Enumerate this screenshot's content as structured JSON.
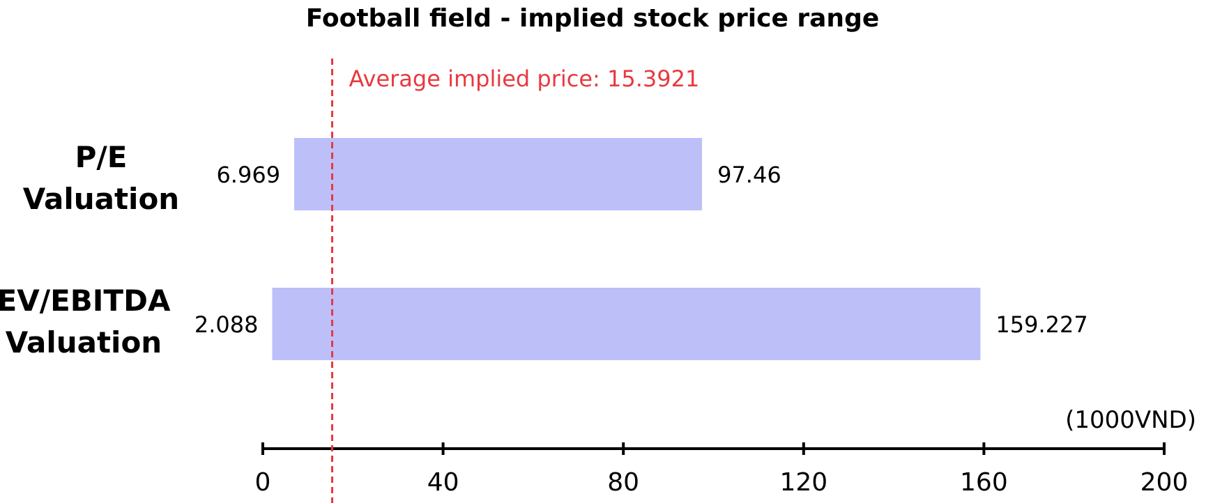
{
  "chart_data": {
    "type": "bar",
    "subtype": "floating-range",
    "title": "Football field - implied stock price range",
    "unit_label": "(1000VND)",
    "categories": [
      "P/E Valuation",
      "EV/EBITDA Valuation"
    ],
    "category_lines": [
      [
        "P/E",
        "Valuation"
      ],
      [
        "EV/EBITDA",
        "Valuation"
      ]
    ],
    "ranges": [
      {
        "low": 6.969,
        "high": 97.46
      },
      {
        "low": 2.088,
        "high": 159.227
      }
    ],
    "low_labels": [
      "6.969",
      "2.088"
    ],
    "high_labels": [
      "97.46",
      "159.227"
    ],
    "x_ticks": [
      0,
      40,
      80,
      120,
      160,
      200
    ],
    "x_tick_labels": [
      "0",
      "40",
      "80",
      "120",
      "160",
      "200"
    ],
    "xlim": [
      0,
      200
    ],
    "reference_line": {
      "value": 15.3921,
      "label": "Average implied price: 15.3921",
      "style": "dashed"
    },
    "grid": false,
    "colors": {
      "bar": "#bdbff9",
      "reference": "#e8393f",
      "axis": "#000000"
    }
  }
}
